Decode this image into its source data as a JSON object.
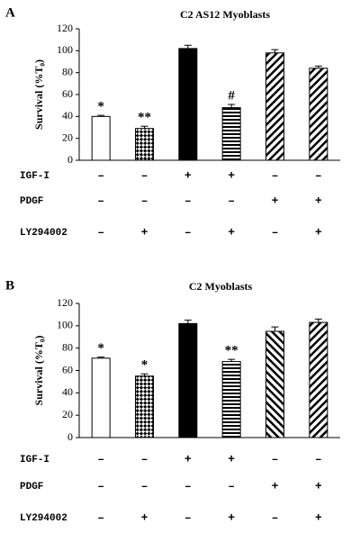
{
  "chart_data": [
    {
      "type": "bar",
      "panel": "A",
      "title": "C2 AS12 Myoblasts",
      "ylabel": "Survival (%T₀)",
      "ylim": [
        0,
        120
      ],
      "yticks": [
        0,
        20,
        40,
        60,
        80,
        100,
        120
      ],
      "values": [
        40,
        29,
        102,
        48,
        98,
        84
      ],
      "errors": [
        1,
        2,
        3,
        3,
        3,
        2
      ],
      "annotations": [
        "*",
        "**",
        null,
        "#",
        null,
        null
      ],
      "fills": [
        "white",
        "diamond",
        "black",
        "hstripe",
        "diag-up",
        "diag-up"
      ],
      "treatments": [
        {
          "name": "IGF-I",
          "signs": [
            "–",
            "–",
            "+",
            "+",
            "–",
            "–"
          ]
        },
        {
          "name": "PDGF",
          "signs": [
            "–",
            "–",
            "–",
            "–",
            "+",
            "+"
          ]
        },
        {
          "name": "LY294002",
          "signs": [
            "–",
            "+",
            "–",
            "+",
            "–",
            "+"
          ]
        }
      ]
    },
    {
      "type": "bar",
      "panel": "B",
      "title": "C2 Myoblasts",
      "ylabel": "Survival (%T₀)",
      "ylim": [
        0,
        120
      ],
      "yticks": [
        0,
        20,
        40,
        60,
        80,
        100,
        120
      ],
      "values": [
        71,
        55,
        102,
        68,
        95,
        103
      ],
      "errors": [
        1,
        2,
        3,
        2,
        4,
        3
      ],
      "annotations": [
        "*",
        "*",
        null,
        "**",
        null,
        null
      ],
      "fills": [
        "white",
        "diamond",
        "black",
        "hstripe",
        "diag-down",
        "diag-up"
      ],
      "treatments": [
        {
          "name": "IGF-I",
          "signs": [
            "–",
            "–",
            "+",
            "+",
            "–",
            "–"
          ]
        },
        {
          "name": "PDGF",
          "signs": [
            "–",
            "–",
            "–",
            "–",
            "+",
            "+"
          ]
        },
        {
          "name": "LY294002",
          "signs": [
            "–",
            "+",
            "–",
            "+",
            "–",
            "+"
          ]
        }
      ]
    }
  ]
}
